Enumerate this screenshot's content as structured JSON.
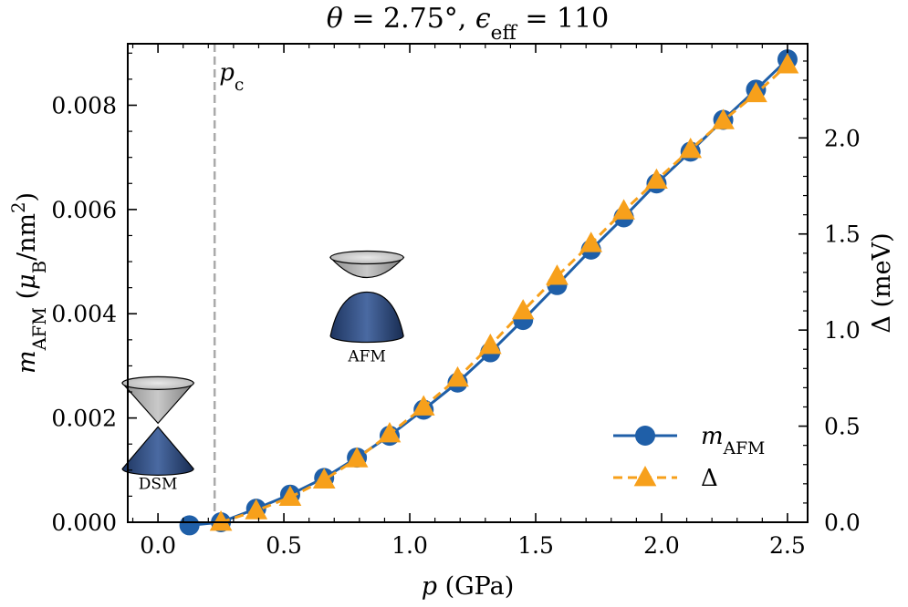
{
  "chart_data": {
    "type": "line",
    "title": "θ = 2.75°, ϵ_eff = 110",
    "xlabel": "p (GPa)",
    "ylabel": "m_AFM (μ_B/nm²)",
    "y2label": "Δ (meV)",
    "xlim": [
      -0.12,
      2.58
    ],
    "ylim": [
      0.0,
      0.00918
    ],
    "y2lim": [
      0.0,
      2.49
    ],
    "xticks": [
      "0.0",
      "0.5",
      "1.0",
      "1.5",
      "2.0",
      "2.5"
    ],
    "yticks": [
      "0.000",
      "0.002",
      "0.004",
      "0.006",
      "0.008"
    ],
    "y2ticks": [
      "0.0",
      "0.5",
      "1.0",
      "1.5",
      "2.0"
    ],
    "critical_label": "p_c",
    "critical_x": 0.225,
    "series": [
      {
        "name": "m_AFM",
        "axis": "left",
        "color": "#1f5fa8",
        "marker": "circle",
        "x": [
          0.125,
          0.25,
          0.39,
          0.525,
          0.66,
          0.79,
          0.92,
          1.055,
          1.19,
          1.32,
          1.45,
          1.585,
          1.72,
          1.85,
          1.98,
          2.115,
          2.245,
          2.375,
          2.5
        ],
        "values": [
          -6e-05,
          0.0,
          0.00026,
          0.00053,
          0.00085,
          0.00124,
          0.00166,
          0.00216,
          0.00268,
          0.00326,
          0.00388,
          0.00455,
          0.00523,
          0.00585,
          0.0065,
          0.00711,
          0.00772,
          0.0083,
          0.00888
        ]
      },
      {
        "name": "Δ",
        "axis": "right",
        "color": "#f7a01b",
        "marker": "triangle",
        "x": [
          0.25,
          0.39,
          0.525,
          0.66,
          0.79,
          0.92,
          1.055,
          1.19,
          1.32,
          1.45,
          1.585,
          1.72,
          1.85,
          1.98,
          2.115,
          2.245,
          2.375,
          2.5
        ],
        "values": [
          0.0,
          0.06,
          0.13,
          0.22,
          0.33,
          0.46,
          0.6,
          0.75,
          0.92,
          1.1,
          1.28,
          1.45,
          1.62,
          1.78,
          1.94,
          2.09,
          2.23,
          2.38
        ]
      }
    ],
    "legend": {
      "position": "lower-right",
      "entries": [
        "m_AFM",
        "Δ"
      ]
    },
    "insets": [
      {
        "label": "DSM",
        "x": 0.0,
        "y": 0.0019
      },
      {
        "label": "AFM",
        "x": 0.83,
        "y": 0.0041
      }
    ]
  }
}
